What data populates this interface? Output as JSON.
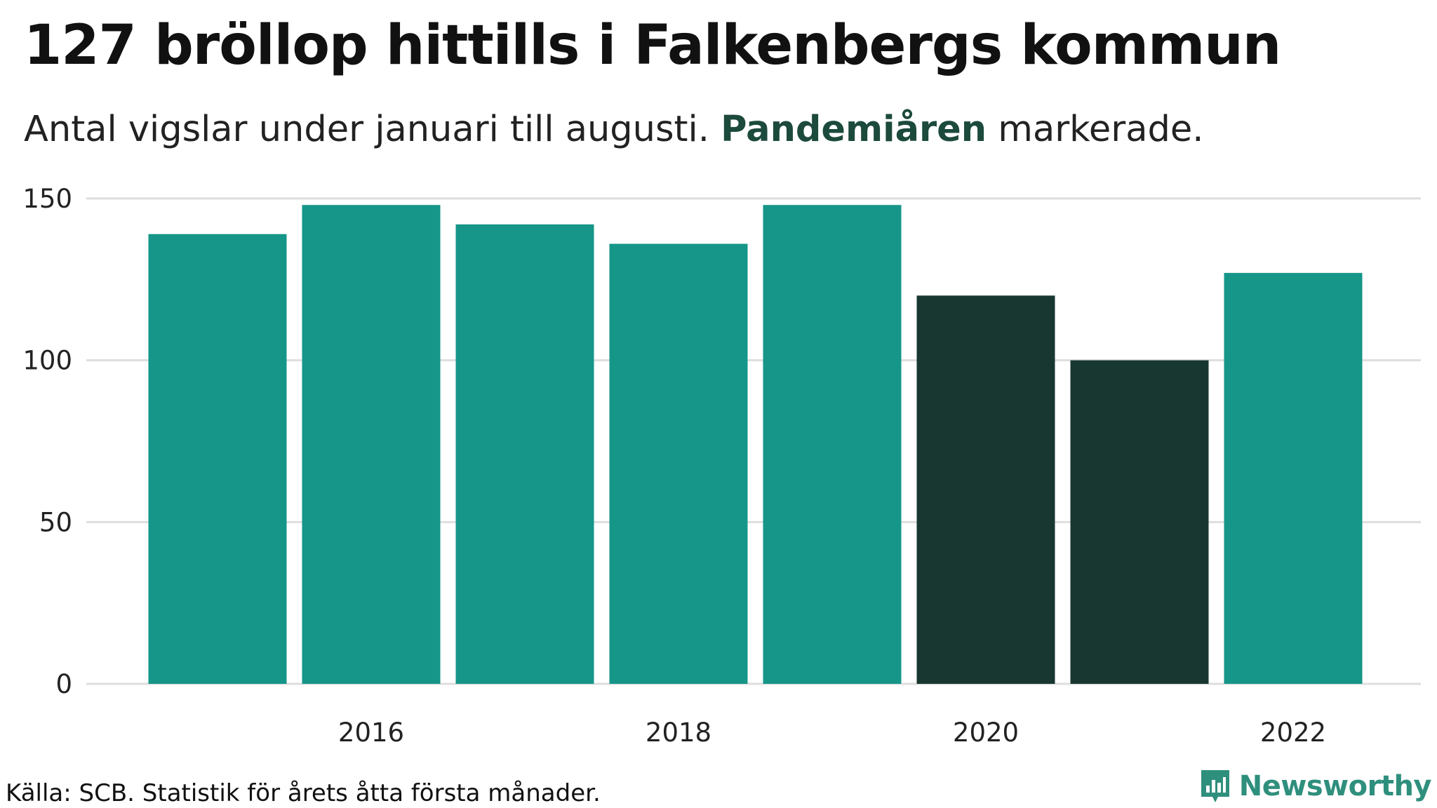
{
  "header": {
    "title": "127 bröllop hittills i Falkenbergs kommun",
    "subtitle_pre": "Antal vigslar under januari till augusti.",
    "subtitle_highlight": "Pandemiåren",
    "subtitle_post": "markerade."
  },
  "footer": {
    "source": "Källa: SCB. Statistik för årets åtta första månader.",
    "brand": "Newsworthy",
    "brand_icon": "bar-chart-speech-icon"
  },
  "colors": {
    "normal": "#159688",
    "pandemic": "#183731",
    "grid": "#dedede",
    "brand": "#2f8f7d",
    "highlight": "#1c4a3c"
  },
  "chart_data": {
    "type": "bar",
    "title": "127 bröllop hittills i Falkenbergs kommun",
    "subtitle": "Antal vigslar under januari till augusti. Pandemiåren markerade.",
    "categories": [
      2015,
      2016,
      2017,
      2018,
      2019,
      2020,
      2021,
      2022
    ],
    "values": [
      139,
      148,
      142,
      136,
      148,
      120,
      100,
      127
    ],
    "pandemic": [
      false,
      false,
      false,
      false,
      false,
      true,
      true,
      false
    ],
    "x_tick_labels": [
      "2016",
      "2018",
      "2020",
      "2022"
    ],
    "y_ticks": [
      0,
      50,
      100,
      150
    ],
    "ylim": [
      0,
      150
    ],
    "grid": "horizontal",
    "legend": "none",
    "xlabel": "",
    "ylabel": ""
  }
}
